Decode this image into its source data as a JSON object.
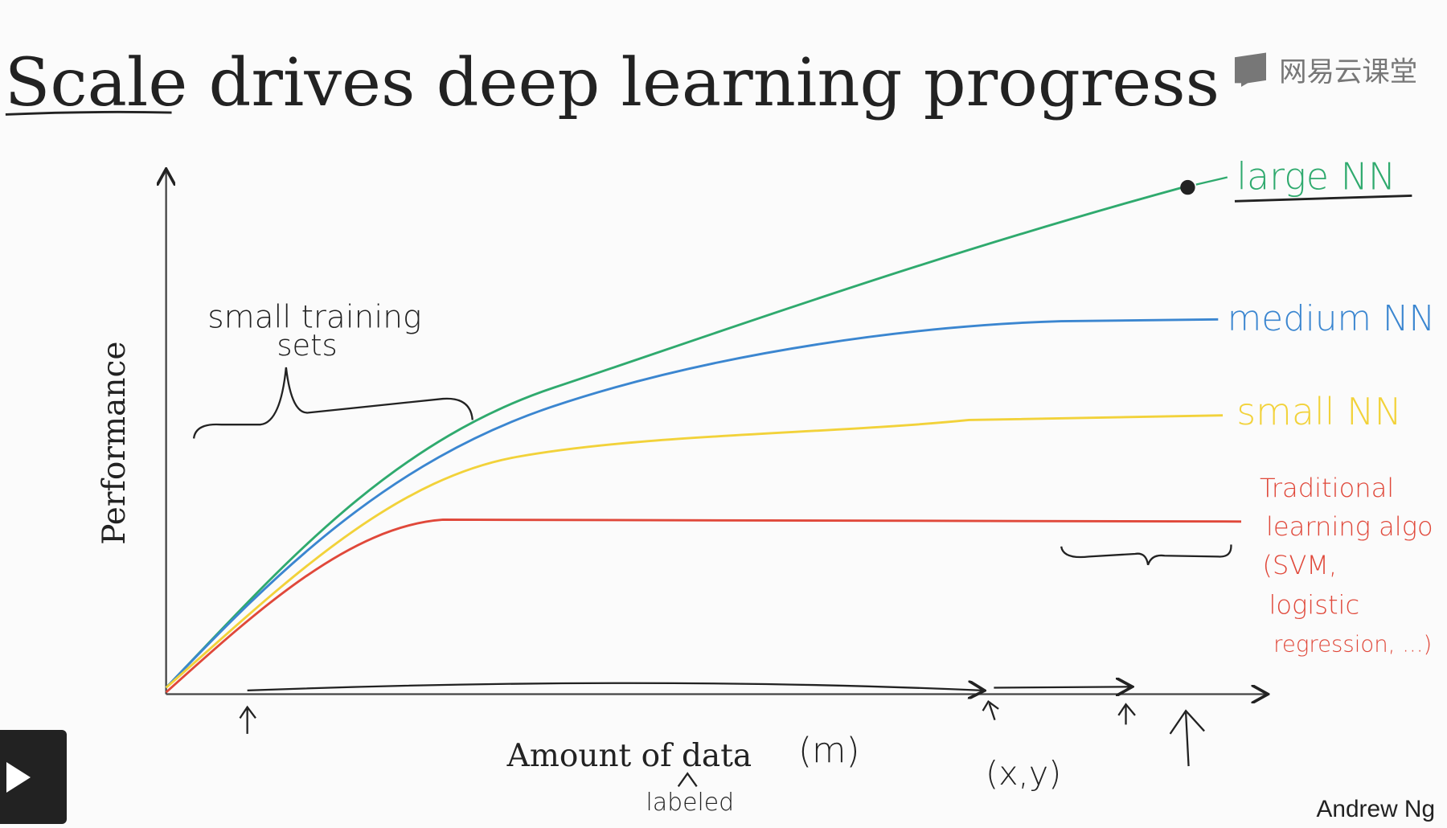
{
  "title": "Scale drives deep learning progress",
  "watermark": "网易云课堂",
  "author": "Andrew Ng",
  "y_axis_label": "Performance",
  "x_axis_label": "Amount of data",
  "x_axis_annotation": "(m)",
  "x_axis_note": "labeled",
  "pair_note": "(x,y)",
  "small_sets_note": [
    "small training",
    "sets"
  ],
  "curves": [
    {
      "label": "large NN",
      "color": "#2faa6e"
    },
    {
      "label": "medium NN",
      "color": "#3b86d0"
    },
    {
      "label": "small NN",
      "color": "#f2d23a"
    },
    {
      "label_lines": [
        "Traditional",
        "learning algo",
        "(SVM,",
        "logistic",
        "regression, ...)"
      ],
      "color": "#e0483a"
    }
  ],
  "player": {
    "play_icon": "play-icon"
  }
}
